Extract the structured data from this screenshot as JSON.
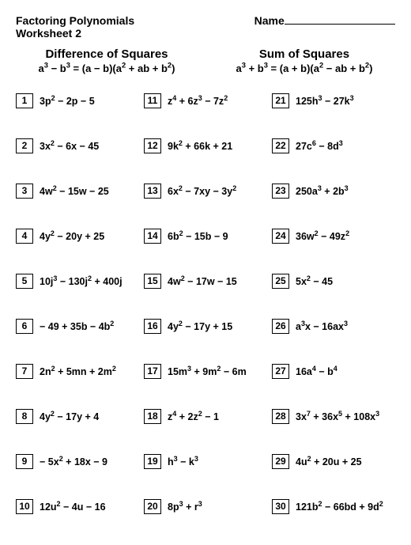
{
  "header": {
    "title": "Factoring Polynomials Worksheet 2",
    "name_label": "Name"
  },
  "formulas": {
    "left": {
      "title": "Difference of Squares",
      "eq_html": "a<sup>3</sup> − b<sup>3</sup> = (a − b)(a<sup>2</sup> + ab + b<sup>2</sup>)"
    },
    "right": {
      "title": "Sum of Squares",
      "eq_html": "a<sup>3</sup> + b<sup>3</sup> = (a + b)(a<sup>2</sup> − ab + b<sup>2</sup>)"
    }
  },
  "problems": [
    {
      "n": "1",
      "expr": "3p<sup>2</sup> − 2p − 5"
    },
    {
      "n": "11",
      "expr": "z<sup>4</sup> + 6z<sup>3</sup> − 7z<sup>2</sup>"
    },
    {
      "n": "21",
      "expr": "125h<sup>3</sup> − 27k<sup>3</sup>"
    },
    {
      "n": "2",
      "expr": "3x<sup>2</sup> − 6x − 45"
    },
    {
      "n": "12",
      "expr": "9k<sup>2</sup> + 66k + 21"
    },
    {
      "n": "22",
      "expr": "27c<sup>6</sup> − 8d<sup>3</sup>"
    },
    {
      "n": "3",
      "expr": "4w<sup>2</sup> − 15w − 25"
    },
    {
      "n": "13",
      "expr": "6x<sup>2</sup> − 7xy − 3y<sup>2</sup>"
    },
    {
      "n": "23",
      "expr": "250a<sup>3</sup> + 2b<sup>3</sup>"
    },
    {
      "n": "4",
      "expr": "4y<sup>2</sup> − 20y + 25"
    },
    {
      "n": "14",
      "expr": "6b<sup>2</sup> − 15b − 9"
    },
    {
      "n": "24",
      "expr": "36w<sup>2</sup> − 49z<sup>2</sup>"
    },
    {
      "n": "5",
      "expr": "10j<sup>3</sup> − 130j<sup>2</sup> + 400j"
    },
    {
      "n": "15",
      "expr": "4w<sup>2</sup> − 17w − 15"
    },
    {
      "n": "25",
      "expr": "5x<sup>2</sup> − 45"
    },
    {
      "n": "6",
      "expr": "− 49 + 35b − 4b<sup>2</sup>"
    },
    {
      "n": "16",
      "expr": "4y<sup>2</sup> − 17y + 15"
    },
    {
      "n": "26",
      "expr": "a<sup>3</sup>x − 16ax<sup>3</sup>"
    },
    {
      "n": "7",
      "expr": "2n<sup>2</sup> + 5mn + 2m<sup>2</sup>"
    },
    {
      "n": "17",
      "expr": "15m<sup>3</sup> + 9m<sup>2</sup> − 6m"
    },
    {
      "n": "27",
      "expr": "16a<sup>4</sup> − b<sup>4</sup>"
    },
    {
      "n": "8",
      "expr": "4y<sup>2</sup> − 17y + 4"
    },
    {
      "n": "18",
      "expr": "z<sup>4</sup> + 2z<sup>2</sup> − 1"
    },
    {
      "n": "28",
      "expr": "3x<sup>7</sup> + 36x<sup>5</sup> + 108x<sup>3</sup>"
    },
    {
      "n": "9",
      "expr": "− 5x<sup>2</sup> + 18x − 9"
    },
    {
      "n": "19",
      "expr": "h<sup>3</sup> − k<sup>3</sup>"
    },
    {
      "n": "29",
      "expr": "4u<sup>2</sup> + 20u + 25"
    },
    {
      "n": "10",
      "expr": "12u<sup>2</sup> − 4u − 16"
    },
    {
      "n": "20",
      "expr": "8p<sup>3</sup> + r<sup>3</sup>"
    },
    {
      "n": "30",
      "expr": "121b<sup>2</sup> − 66bd + 9d<sup>2</sup>"
    }
  ]
}
